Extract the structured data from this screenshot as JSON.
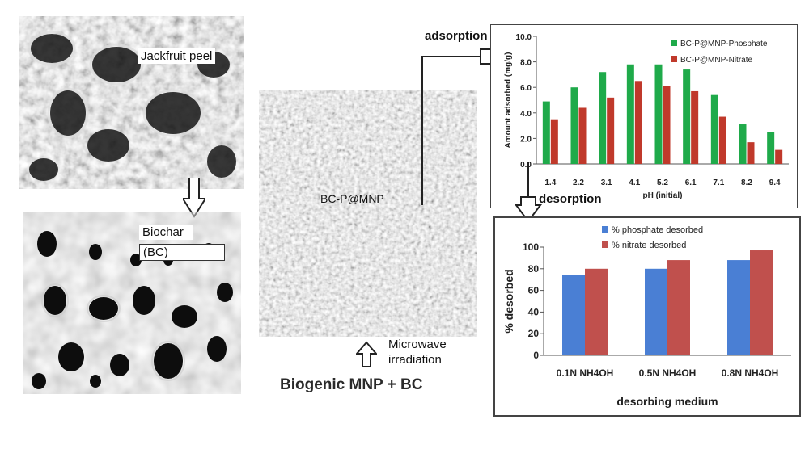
{
  "panels": {
    "jackfruit_label": "Jackfruit peel",
    "biochar_label_line1": "Biochar",
    "biochar_label_line2": "(BC)",
    "composite_label": "BC-P@MNP",
    "microwave_line1": "Microwave",
    "microwave_line2": "irradiation",
    "precursor_label": "Biogenic MNP + BC",
    "adsorption_label": "adsorption",
    "desorption_label": "desorption"
  },
  "colors": {
    "green": "#1faa4a",
    "red": "#c0392b",
    "blue": "#4a7fd4",
    "darkred": "#c0504d"
  },
  "chart_data": [
    {
      "type": "bar",
      "title": "",
      "xlabel": "pH (initial)",
      "ylabel": "Amount adsorbed (mg/g)",
      "ylim": [
        0,
        10
      ],
      "yticks": [
        "0.0",
        "2.0",
        "4.0",
        "6.0",
        "8.0",
        "10.0"
      ],
      "categories": [
        "1.4",
        "2.2",
        "3.1",
        "4.1",
        "5.2",
        "6.1",
        "7.1",
        "8.2",
        "9.4"
      ],
      "series": [
        {
          "name": "BC-P@MNP-Phosphate",
          "values": [
            4.9,
            6.0,
            7.2,
            7.8,
            7.8,
            7.4,
            5.4,
            3.1,
            2.5
          ]
        },
        {
          "name": "BC-P@MNP-Nitrate",
          "values": [
            3.5,
            4.4,
            5.2,
            6.5,
            6.1,
            5.7,
            3.7,
            1.7,
            1.1
          ]
        }
      ],
      "legend": "top-right",
      "grid": false
    },
    {
      "type": "bar",
      "title": "",
      "xlabel": "desorbing medium",
      "ylabel": "% desorbed",
      "ylim": [
        0,
        100
      ],
      "yticks": [
        "0",
        "20",
        "40",
        "60",
        "80",
        "100"
      ],
      "categories": [
        "0.1N NH4OH",
        "0.5N NH4OH",
        "0.8N NH4OH"
      ],
      "series": [
        {
          "name": "% phosphate desorbed",
          "values": [
            74,
            80,
            88
          ]
        },
        {
          "name": "% nitrate desorbed",
          "values": [
            80,
            88,
            97
          ]
        }
      ],
      "legend": "top",
      "grid": false
    }
  ]
}
